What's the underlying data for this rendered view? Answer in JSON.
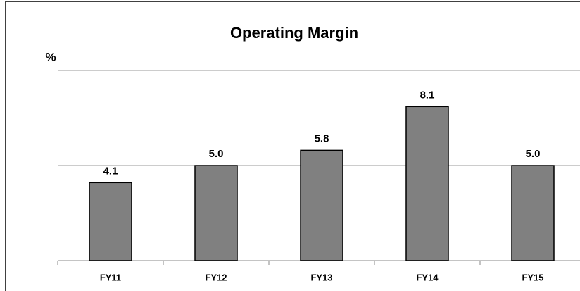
{
  "chart_data": {
    "type": "bar",
    "title": "Operating Margin",
    "y_label": "%",
    "categories": [
      "FY11",
      "FY12",
      "FY13",
      "FY14",
      "FY15"
    ],
    "values": [
      4.1,
      5.0,
      5.8,
      8.1,
      5.0
    ],
    "value_labels": [
      "4.1",
      "5.0",
      "5.8",
      "8.1",
      "5.0"
    ],
    "color": "#808080",
    "ylim": [
      0,
      10
    ],
    "yticks": [
      0,
      5,
      10
    ],
    "grid": true
  }
}
